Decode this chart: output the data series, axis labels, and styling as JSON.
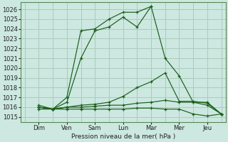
{
  "bg_color": "#cce8e0",
  "grid_color": "#aaccbb",
  "line_color": "#1a5e1a",
  "xlabel": "Pression niveau de la mer( hPa )",
  "ylim": [
    1014.5,
    1026.7
  ],
  "xlim": [
    -0.15,
    7.15
  ],
  "ytick_vals": [
    1015,
    1016,
    1017,
    1018,
    1019,
    1020,
    1021,
    1022,
    1023,
    1024,
    1025,
    1026
  ],
  "x_labels": [
    "Dim",
    "Ven",
    "Sam",
    "Lun",
    "Mar",
    "Mer",
    "Jeu"
  ],
  "x_tick_positions": [
    0.5,
    1.5,
    2.5,
    3.5,
    4.5,
    5.5,
    6.5
  ],
  "x_div_positions": [
    0,
    1,
    2,
    3,
    4,
    5,
    6,
    7
  ],
  "lines": [
    {
      "x": [
        0.5,
        1.0,
        1.5,
        2.0,
        2.5,
        3.0,
        3.5,
        4.0,
        4.5
      ],
      "y": [
        1016.0,
        1015.8,
        1017.0,
        1023.8,
        1024.0,
        1025.0,
        1025.7,
        1025.7,
        1026.3
      ]
    },
    {
      "x": [
        0.5,
        1.0,
        1.5,
        2.0,
        2.5,
        3.0,
        3.5,
        4.0,
        4.5,
        5.0,
        5.5,
        6.0,
        6.5,
        7.0
      ],
      "y": [
        1016.2,
        1015.8,
        1016.5,
        1021.0,
        1023.8,
        1024.2,
        1025.2,
        1024.2,
        1026.3,
        1021.0,
        1019.2,
        1016.5,
        1016.5,
        1015.3
      ]
    },
    {
      "x": [
        0.5,
        1.0,
        1.5,
        2.0,
        2.5,
        3.0,
        3.5,
        4.0,
        4.5,
        5.0,
        5.5,
        6.0,
        6.5,
        7.0
      ],
      "y": [
        1016.0,
        1015.8,
        1016.0,
        1016.2,
        1016.3,
        1016.5,
        1017.1,
        1018.0,
        1018.6,
        1019.5,
        1016.6,
        1016.6,
        1016.4,
        1015.3
      ]
    },
    {
      "x": [
        0.5,
        1.0,
        1.5,
        2.0,
        2.5,
        3.0,
        3.5,
        4.0,
        4.5,
        5.0,
        5.5,
        6.0,
        6.5,
        7.0
      ],
      "y": [
        1016.0,
        1015.8,
        1016.0,
        1016.0,
        1016.1,
        1016.2,
        1016.2,
        1016.4,
        1016.5,
        1016.7,
        1016.5,
        1016.5,
        1016.2,
        1015.3
      ]
    },
    {
      "x": [
        0.5,
        1.0,
        1.5,
        2.0,
        2.5,
        3.0,
        3.5,
        4.0,
        4.5,
        5.0,
        5.5,
        6.0,
        6.5,
        7.0
      ],
      "y": [
        1015.8,
        1015.8,
        1015.8,
        1015.8,
        1015.8,
        1015.8,
        1015.8,
        1015.9,
        1015.9,
        1015.8,
        1015.8,
        1015.3,
        1015.1,
        1015.3
      ]
    }
  ]
}
